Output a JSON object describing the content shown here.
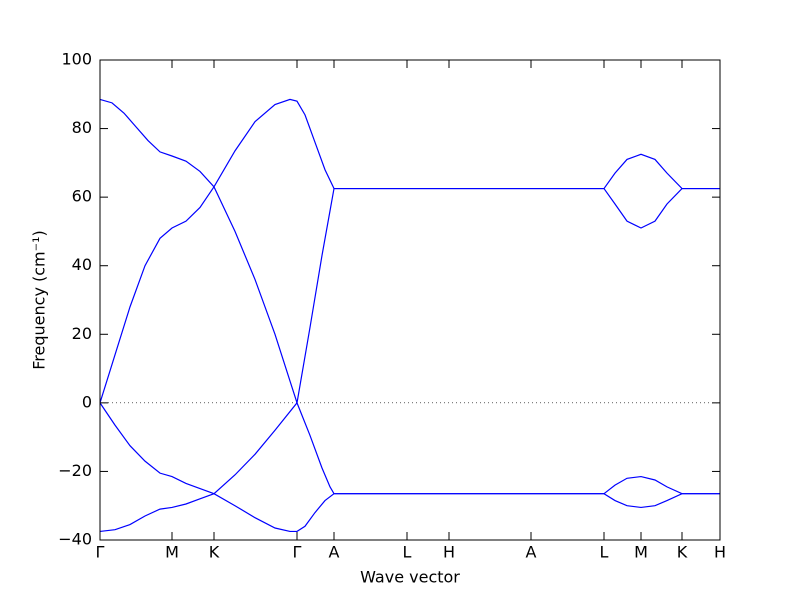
{
  "chart_data": {
    "type": "line",
    "xlabel": "Wave vector",
    "ylabel": "Frequency (cm⁻¹)",
    "xlim": [
      0,
      620
    ],
    "ylim": [
      -40,
      100
    ],
    "xticks": [
      {
        "value": 0,
        "label": "Γ"
      },
      {
        "value": 72,
        "label": "M"
      },
      {
        "value": 114,
        "label": "K"
      },
      {
        "value": 197,
        "label": "Γ"
      },
      {
        "value": 234,
        "label": "A"
      },
      {
        "value": 307,
        "label": "L"
      },
      {
        "value": 349,
        "label": "H"
      },
      {
        "value": 431,
        "label": "A"
      },
      {
        "value": 504,
        "label": "L"
      },
      {
        "value": 541,
        "label": "M"
      },
      {
        "value": 582,
        "label": "K"
      },
      {
        "value": 620,
        "label": "H"
      }
    ],
    "yticks": [
      {
        "value": -40,
        "label": "−40"
      },
      {
        "value": -20,
        "label": "−20"
      },
      0,
      20,
      40,
      60,
      80,
      100
    ],
    "zero_line": true,
    "series": [
      {
        "color": "#0000ff",
        "x": [
          0,
          12,
          24,
          36,
          48,
          60,
          72,
          86,
          100,
          114,
          135,
          155,
          175,
          197,
          210,
          222,
          230,
          234,
          504,
          515,
          527,
          541,
          555,
          567,
          582,
          620
        ],
        "values": [
          88.5,
          87.5,
          84.5,
          80.5,
          76.5,
          73.2,
          72,
          70.5,
          67.5,
          63,
          50,
          36,
          20,
          0,
          22,
          43,
          56,
          62.5,
          62.5,
          67,
          71,
          72.5,
          71,
          67,
          62.5,
          62.5
        ]
      },
      {
        "color": "#0000ff",
        "x": [
          0,
          15,
          30,
          45,
          60,
          72,
          86,
          100,
          114,
          135,
          155,
          175,
          190,
          197,
          205,
          215,
          225,
          234,
          504,
          515,
          527,
          541,
          555,
          567,
          582,
          620
        ],
        "values": [
          0,
          14,
          28,
          40,
          48,
          51,
          53,
          57,
          63,
          73.5,
          82,
          87,
          88.5,
          88,
          84,
          76,
          68,
          62.5,
          62.5,
          58,
          53,
          51,
          53,
          58,
          62.5,
          62.5
        ]
      },
      {
        "color": "#0000ff",
        "x": [
          0,
          15,
          30,
          45,
          60,
          72,
          86,
          100,
          114,
          135,
          155,
          175,
          190,
          197,
          205,
          215,
          225,
          234,
          504,
          515,
          527,
          541,
          555,
          567,
          582,
          620
        ],
        "values": [
          0,
          -6.5,
          -12.5,
          -17,
          -20.5,
          -21.5,
          -23.5,
          -25,
          -26.5,
          -30,
          -33.5,
          -36.5,
          -37.5,
          -37.5,
          -36,
          -32,
          -28.5,
          -26.5,
          -26.5,
          -24,
          -22,
          -21.5,
          -22.5,
          -24.5,
          -26.5,
          -26.5
        ]
      },
      {
        "color": "#0000ff",
        "x": [
          0,
          15,
          30,
          45,
          60,
          72,
          86,
          100,
          114,
          135,
          155,
          175,
          197,
          210,
          222,
          230,
          234,
          504,
          515,
          527,
          541,
          555,
          567,
          582,
          620
        ],
        "values": [
          -37.5,
          -37,
          -35.5,
          -33,
          -31,
          -30.5,
          -29.5,
          -28,
          -26.5,
          -21,
          -15,
          -8,
          0,
          -9.5,
          -19,
          -24.5,
          -26.5,
          -26.5,
          -28.5,
          -30,
          -30.5,
          -30,
          -28.5,
          -26.5,
          -26.5
        ]
      }
    ]
  }
}
